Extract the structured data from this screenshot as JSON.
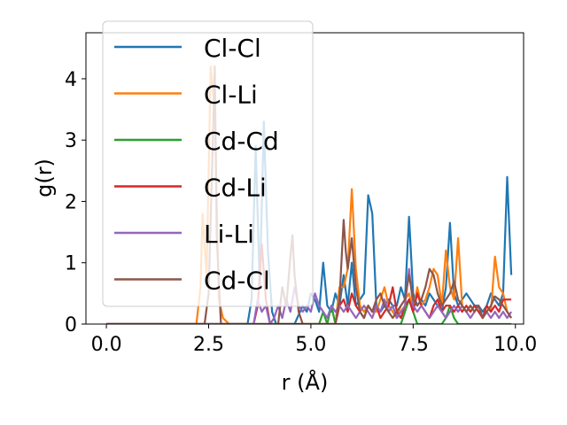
{
  "chart_data": {
    "type": "line",
    "xlabel": "r (Å)",
    "ylabel": "g(r)",
    "xlim": [
      -0.5,
      10.2
    ],
    "ylim": [
      0,
      4.75
    ],
    "xticks": [
      0.0,
      2.5,
      5.0,
      7.5,
      10.0
    ],
    "xtick_labels": [
      "0.0",
      "2.5",
      "5.0",
      "7.5",
      "10.0"
    ],
    "yticks": [
      0,
      1,
      2,
      3,
      4
    ],
    "ytick_labels": [
      "0",
      "1",
      "2",
      "3",
      "4"
    ],
    "grid": false,
    "legend_position": "upper-left",
    "series": [
      {
        "name": "Cl-Cl",
        "color": "#1f77b4",
        "x": [
          0,
          3.45,
          3.55,
          3.65,
          3.75,
          3.85,
          3.95,
          4.05,
          4.15,
          4.6,
          4.8,
          4.9,
          5.0,
          5.1,
          5.2,
          5.3,
          5.4,
          5.5,
          5.6,
          5.7,
          5.8,
          5.9,
          6.0,
          6.1,
          6.2,
          6.3,
          6.4,
          6.5,
          6.6,
          6.7,
          6.8,
          6.9,
          7.0,
          7.1,
          7.2,
          7.3,
          7.4,
          7.5,
          7.6,
          7.7,
          7.8,
          7.9,
          8.0,
          8.1,
          8.2,
          8.3,
          8.4,
          8.5,
          8.6,
          8.7,
          8.8,
          8.9,
          9.0,
          9.1,
          9.2,
          9.3,
          9.4,
          9.5,
          9.6,
          9.7,
          9.8,
          9.9
        ],
        "y": [
          0,
          0,
          0.4,
          2.9,
          0.6,
          3.3,
          1.2,
          0.2,
          0,
          0,
          0.3,
          0.2,
          0.5,
          0.4,
          0.2,
          1.0,
          0.3,
          0.2,
          0.5,
          0.3,
          0.8,
          0.3,
          1.0,
          0.3,
          0.4,
          0.5,
          2.1,
          1.8,
          0.3,
          0.2,
          0.3,
          0.4,
          0.3,
          0.3,
          0.6,
          0.4,
          1.75,
          0.5,
          0.3,
          0.4,
          0.3,
          0.5,
          0.4,
          0.3,
          0.2,
          0.6,
          1.65,
          0.5,
          0.3,
          0.4,
          0.5,
          0.4,
          0.3,
          0.3,
          0.2,
          0.3,
          0.5,
          0.4,
          0.3,
          0.5,
          2.4,
          0.8
        ]
      },
      {
        "name": "Cl-Li",
        "color": "#ff7f0e",
        "x": [
          0,
          2.2,
          2.3,
          2.35,
          2.45,
          2.55,
          2.65,
          2.75,
          2.85,
          3.0,
          5.6,
          5.7,
          5.8,
          5.9,
          6.0,
          6.1,
          6.2,
          6.3,
          6.4,
          6.5,
          6.6,
          6.7,
          6.8,
          6.9,
          7.0,
          7.1,
          7.2,
          7.3,
          7.4,
          7.5,
          7.6,
          7.7,
          7.8,
          7.9,
          8.0,
          8.1,
          8.2,
          8.3,
          8.4,
          8.5,
          8.6,
          8.7,
          8.8,
          8.9,
          9.0,
          9.1,
          9.2,
          9.3,
          9.4,
          9.5,
          9.6,
          9.7,
          9.8,
          9.9
        ],
        "y": [
          0,
          0,
          0.6,
          1.8,
          0.8,
          4.2,
          3.5,
          0.4,
          0.1,
          0,
          0,
          0.6,
          0.6,
          0.9,
          2.2,
          0.9,
          0.3,
          0.2,
          0.3,
          0.2,
          0.2,
          0.4,
          0.6,
          0.3,
          0.2,
          0.1,
          0.3,
          0.4,
          0.5,
          0.2,
          0.6,
          0.3,
          0.4,
          0.6,
          0.9,
          0.8,
          0.3,
          1.2,
          0.6,
          0.4,
          1.4,
          0.3,
          0.2,
          0.3,
          0.2,
          0.3,
          0.1,
          0.3,
          0.2,
          1.1,
          0.6,
          0.5,
          0.2,
          0.1
        ]
      },
      {
        "name": "Cd-Cd",
        "color": "#2ca02c",
        "x": [
          0,
          5.2,
          5.3,
          5.4,
          5.5,
          5.6,
          7.2,
          7.3,
          7.4,
          7.5,
          7.6,
          8.2,
          8.3,
          8.4,
          8.5,
          8.6,
          9.9
        ],
        "y": [
          0,
          0,
          0.2,
          0,
          0.3,
          0,
          0,
          0.2,
          0.4,
          0.2,
          0,
          0,
          0.1,
          0.3,
          0.1,
          0,
          0
        ]
      },
      {
        "name": "Cd-Li",
        "color": "#d62728",
        "x": [
          0,
          3.6,
          3.7,
          3.8,
          3.9,
          4.0,
          5.6,
          5.7,
          5.8,
          5.9,
          6.0,
          6.1,
          6.2,
          6.3,
          6.4,
          6.5,
          6.6,
          6.7,
          6.8,
          6.9,
          7.0,
          7.1,
          7.2,
          7.3,
          7.4,
          7.5,
          7.6,
          7.7,
          7.8,
          7.9,
          8.0,
          8.1,
          8.2,
          8.3,
          8.4,
          8.5,
          8.6,
          8.7,
          8.8,
          8.9,
          9.0,
          9.1,
          9.2,
          9.3,
          9.4,
          9.5,
          9.6,
          9.7,
          9.8,
          9.9
        ],
        "y": [
          0,
          0,
          0.3,
          1.3,
          0.4,
          0,
          0,
          0.3,
          0.4,
          0.2,
          0.5,
          0.3,
          0.2,
          0.1,
          0.3,
          0.2,
          0.3,
          0.1,
          0.2,
          0.3,
          0.6,
          0.2,
          0.1,
          0.3,
          0.4,
          0.2,
          0.5,
          0.3,
          0.2,
          0.1,
          0.3,
          0.4,
          0.2,
          0.3,
          0.3,
          0.2,
          0.3,
          0.2,
          0.3,
          0.2,
          0.3,
          0.2,
          0.1,
          0.3,
          0.2,
          0.3,
          0.2,
          0.4,
          0.4,
          0.4
        ]
      },
      {
        "name": "Li-Li",
        "color": "#9467bd",
        "x": [
          0,
          3.6,
          3.7,
          3.8,
          3.9,
          4.0,
          4.1,
          4.2,
          4.3,
          4.4,
          4.5,
          4.6,
          4.7,
          4.8,
          4.9,
          5.0,
          5.1,
          5.2,
          5.3,
          5.4,
          5.5,
          5.6,
          5.7,
          5.8,
          5.9,
          6.0,
          6.1,
          6.2,
          6.3,
          6.4,
          6.5,
          6.6,
          6.7,
          6.8,
          6.9,
          7.0,
          7.1,
          7.2,
          7.3,
          7.4,
          7.5,
          7.6,
          7.7,
          7.8,
          7.9,
          8.0,
          8.1,
          8.2,
          8.3,
          8.4,
          8.5,
          8.6,
          8.7,
          8.8,
          8.9,
          9.0,
          9.1,
          9.2,
          9.3,
          9.4,
          9.5,
          9.6,
          9.7,
          9.8,
          9.9
        ],
        "y": [
          0,
          0,
          0.4,
          0.2,
          0.3,
          0,
          0.1,
          0.3,
          0.1,
          0.4,
          0.2,
          0.6,
          0.3,
          0.2,
          0.3,
          0.2,
          0.5,
          0.3,
          0.2,
          0.1,
          0.3,
          0.2,
          0.3,
          0.2,
          0.3,
          0.2,
          0.1,
          0.2,
          0.3,
          0.2,
          0.1,
          0.3,
          0.2,
          0.4,
          0.2,
          0.3,
          0.1,
          0.2,
          0.3,
          0.9,
          0.3,
          0.2,
          0.3,
          0.2,
          0.1,
          0.2,
          0.3,
          0.2,
          0.1,
          0.2,
          0.3,
          0.2,
          0.3,
          0.2,
          0.1,
          0.2,
          0.3,
          0.1,
          0.2,
          0.1,
          0.2,
          0.1,
          0.2,
          0.1,
          0.2
        ]
      },
      {
        "name": "Cd-Cl",
        "color": "#8c564b",
        "x": [
          0,
          2.4,
          2.5,
          2.6,
          2.65,
          2.7,
          2.8,
          4.2,
          4.3,
          4.4,
          4.5,
          4.55,
          4.6,
          4.7,
          4.8,
          5.6,
          5.7,
          5.8,
          5.85,
          5.9,
          6.0,
          6.1,
          6.2,
          6.3,
          6.4,
          6.5,
          6.6,
          6.7,
          6.8,
          6.9,
          7.0,
          7.1,
          7.2,
          7.3,
          7.4,
          7.5,
          7.6,
          7.7,
          7.8,
          7.9,
          8.0,
          8.1,
          8.2,
          8.3,
          8.4,
          8.5,
          8.6,
          8.7,
          8.8,
          8.9,
          9.0,
          9.1,
          9.2,
          9.3,
          9.4,
          9.5,
          9.6,
          9.7,
          9.8,
          9.9
        ],
        "y": [
          0,
          0,
          0.5,
          2.9,
          4.2,
          1.4,
          0,
          0,
          0.6,
          0.3,
          1.1,
          1.45,
          0.8,
          0.2,
          0,
          0,
          0.4,
          1.7,
          1.2,
          0.9,
          1.4,
          0.6,
          0.2,
          0.1,
          0.3,
          0.2,
          0.4,
          0.5,
          0.3,
          0.2,
          0.1,
          0.2,
          0.3,
          0.4,
          0.8,
          0.4,
          0.3,
          0.4,
          0.6,
          0.9,
          0.8,
          0.5,
          0.3,
          0.4,
          0.5,
          0.7,
          0.4,
          0.3,
          0.2,
          0.3,
          0.2,
          0.3,
          0.1,
          0.2,
          0.3,
          0.45,
          0.4,
          0.3,
          0.2,
          0.1
        ]
      }
    ]
  }
}
